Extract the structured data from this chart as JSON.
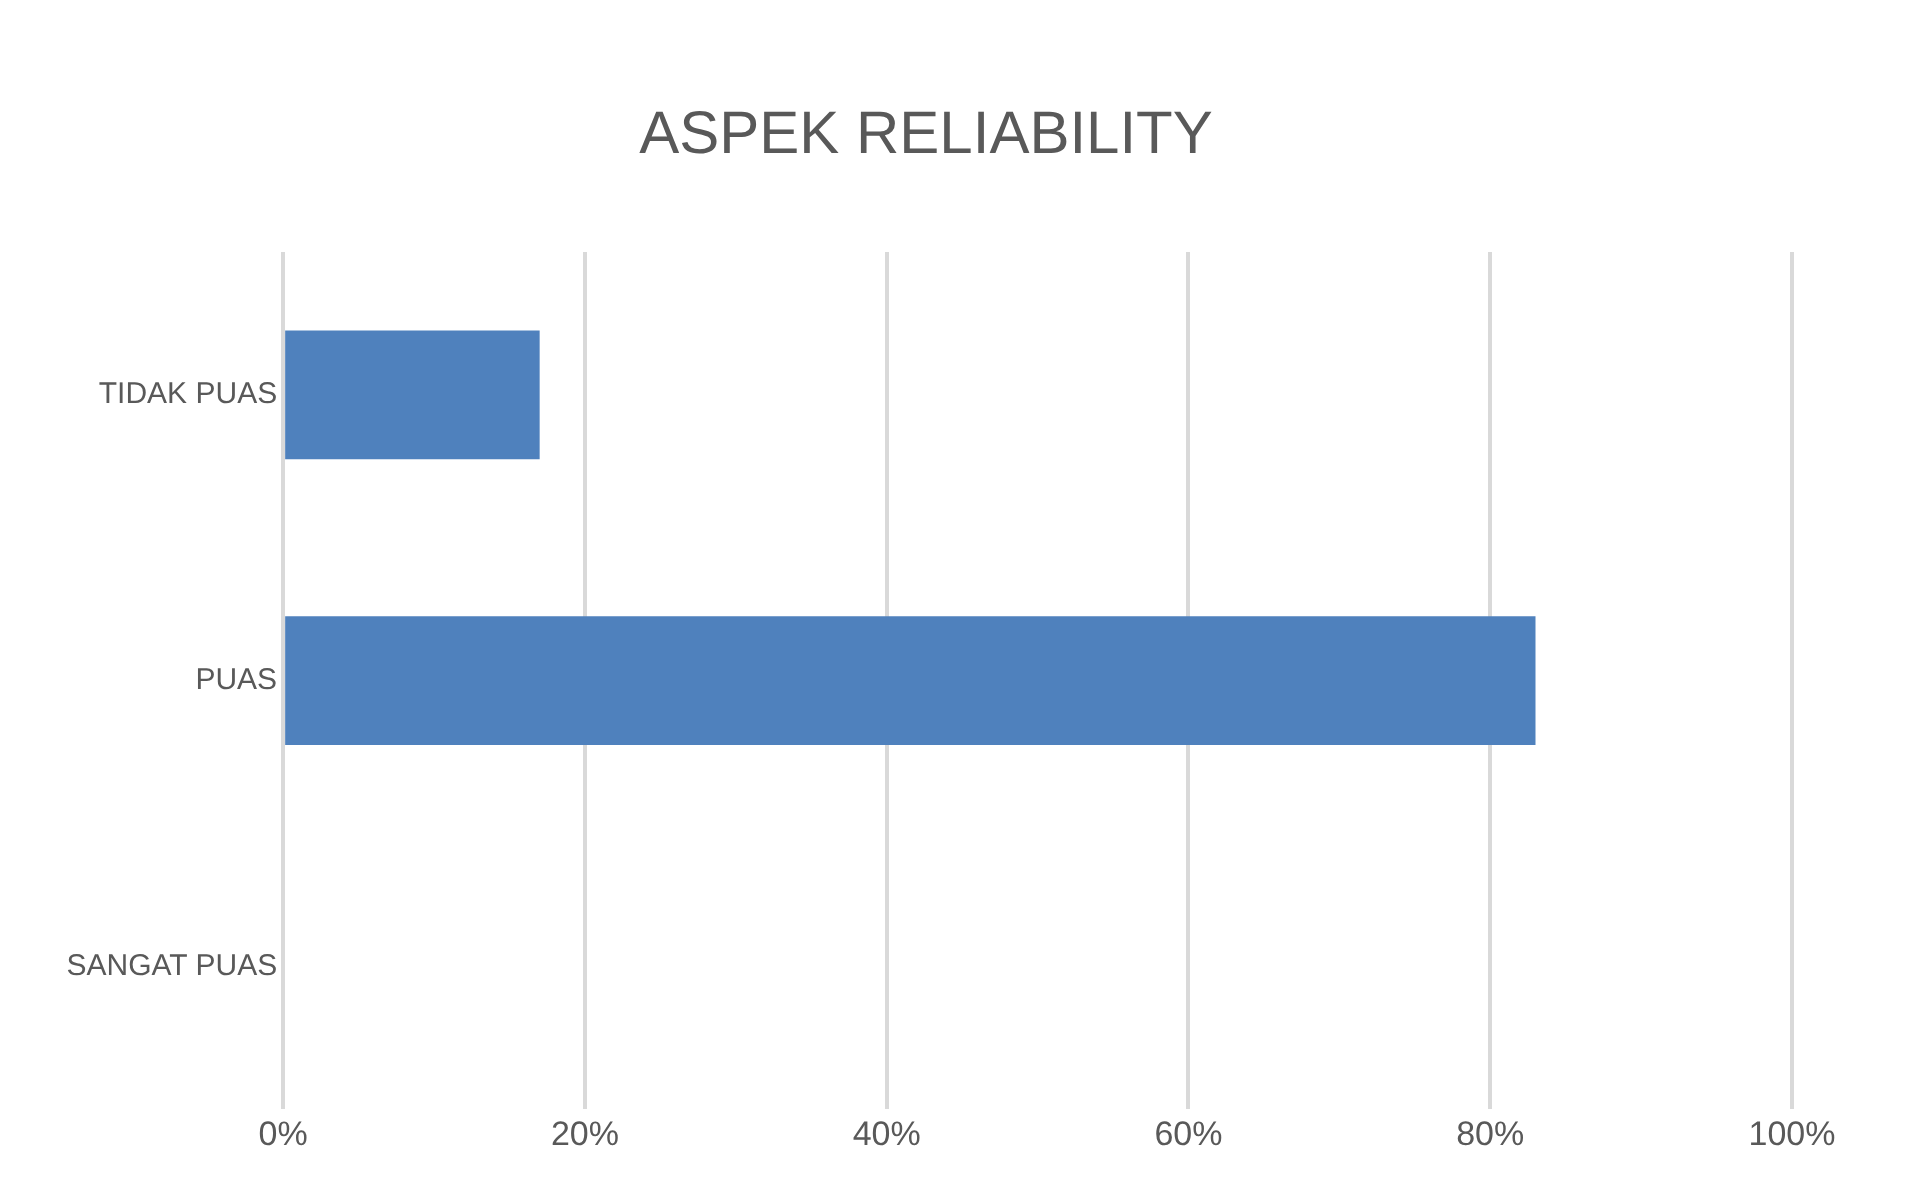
{
  "chart_data": {
    "type": "bar",
    "orientation": "horizontal",
    "title": "ASPEK RELIABILITY",
    "categories": [
      "TIDAK PUAS",
      "PUAS",
      "SANGAT PUAS"
    ],
    "values": [
      17,
      83,
      0
    ],
    "color": "#4f81bd",
    "xlim": [
      0,
      100
    ],
    "xticks": [
      {
        "value": 0,
        "label": "0%"
      },
      {
        "value": 20,
        "label": "20%"
      },
      {
        "value": 40,
        "label": "40%"
      },
      {
        "value": 60,
        "label": "60%"
      },
      {
        "value": 80,
        "label": "80%"
      },
      {
        "value": 100,
        "label": "100%"
      }
    ],
    "grid": "x"
  }
}
